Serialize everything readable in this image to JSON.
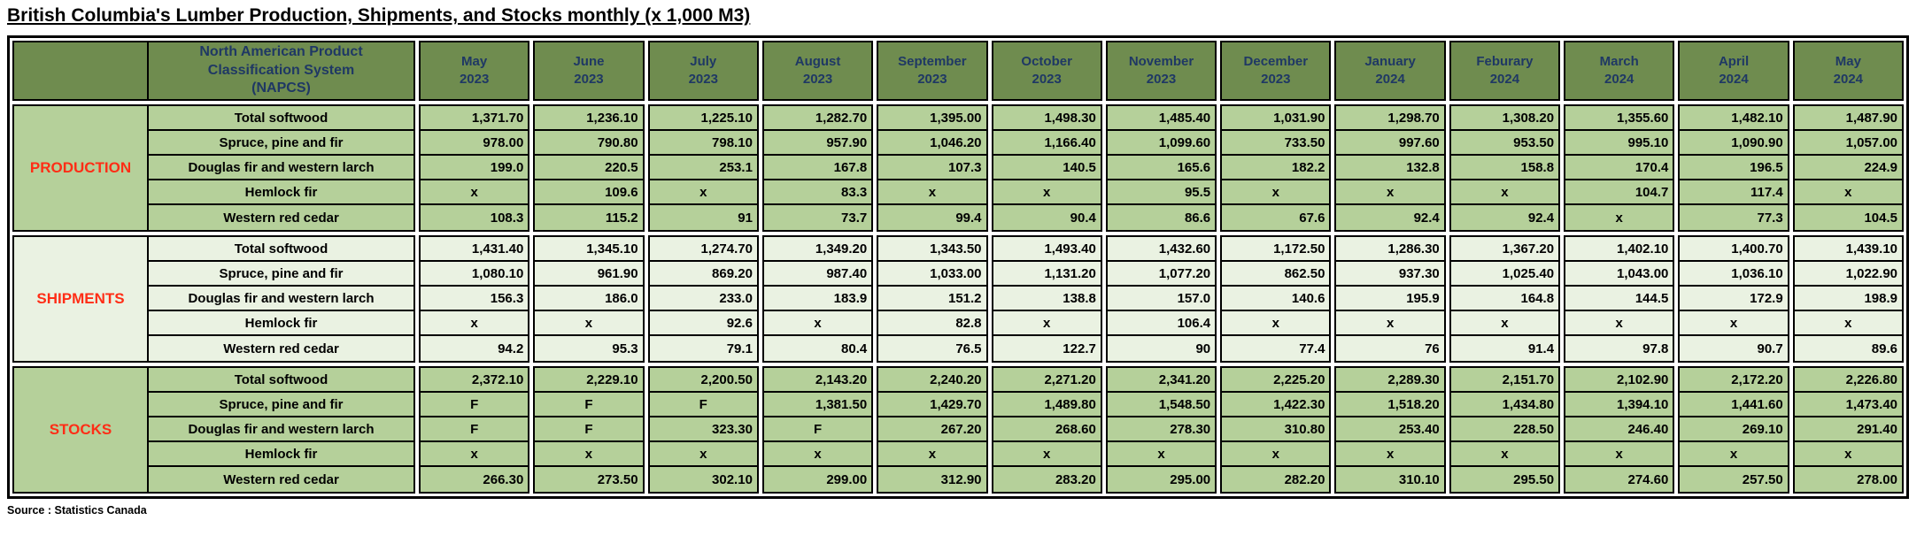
{
  "title": "British Columbia's Lumber Production, Shipments, and Stocks monthly (x 1,000 M3)",
  "source": "Source : Statistics Canada",
  "colors": {
    "header_green": "#6f8c4f",
    "cell_green": "#b5d09a",
    "cell_pale": "#eaf2e2",
    "heading_text": "#1f3864",
    "section_label": "#ff2d16",
    "border": "#000000"
  },
  "chart_data": {
    "type": "table",
    "title": "British Columbia's Lumber Production, Shipments, and Stocks monthly (x 1,000 M3)",
    "napcs_header": "North American Product Classification System (NAPCS)",
    "napcs_header_lines": [
      "North American Product",
      "Classification System",
      "(NAPCS)"
    ],
    "months": [
      {
        "label": "May",
        "year": "2023"
      },
      {
        "label": "June",
        "year": "2023"
      },
      {
        "label": "July",
        "year": "2023"
      },
      {
        "label": "August",
        "year": "2023"
      },
      {
        "label": "September",
        "year": "2023"
      },
      {
        "label": "October",
        "year": "2023"
      },
      {
        "label": "November",
        "year": "2023"
      },
      {
        "label": "December",
        "year": "2023"
      },
      {
        "label": "January",
        "year": "2024"
      },
      {
        "label": "Feburary",
        "year": "2024"
      },
      {
        "label": "March",
        "year": "2024"
      },
      {
        "label": "April",
        "year": "2024"
      },
      {
        "label": "May",
        "year": "2024"
      }
    ],
    "sections": [
      {
        "name": "PRODUCTION",
        "shade": "medium",
        "rows": [
          {
            "category": "Total softwood",
            "values": [
              "1,371.70",
              "1,236.10",
              "1,225.10",
              "1,282.70",
              "1,395.00",
              "1,498.30",
              "1,485.40",
              "1,031.90",
              "1,298.70",
              "1,308.20",
              "1,355.60",
              "1,482.10",
              "1,487.90"
            ]
          },
          {
            "category": "Spruce, pine and fir",
            "values": [
              "978.00",
              "790.80",
              "798.10",
              "957.90",
              "1,046.20",
              "1,166.40",
              "1,099.60",
              "733.50",
              "997.60",
              "953.50",
              "995.10",
              "1,090.90",
              "1,057.00"
            ]
          },
          {
            "category": "Douglas fir and western larch",
            "values": [
              "199.0",
              "220.5",
              "253.1",
              "167.8",
              "107.3",
              "140.5",
              "165.6",
              "182.2",
              "132.8",
              "158.8",
              "170.4",
              "196.5",
              "224.9"
            ]
          },
          {
            "category": "Hemlock fir",
            "values": [
              "x",
              "109.6",
              "x",
              "83.3",
              "x",
              "x",
              "95.5",
              "x",
              "x",
              "x",
              "104.7",
              "117.4",
              "x"
            ]
          },
          {
            "category": "Western red cedar",
            "values": [
              "108.3",
              "115.2",
              "91",
              "73.7",
              "99.4",
              "90.4",
              "86.6",
              "67.6",
              "92.4",
              "92.4",
              "x",
              "77.3",
              "104.5"
            ]
          }
        ]
      },
      {
        "name": "SHIPMENTS",
        "shade": "pale",
        "rows": [
          {
            "category": "Total softwood",
            "values": [
              "1,431.40",
              "1,345.10",
              "1,274.70",
              "1,349.20",
              "1,343.50",
              "1,493.40",
              "1,432.60",
              "1,172.50",
              "1,286.30",
              "1,367.20",
              "1,402.10",
              "1,400.70",
              "1,439.10"
            ]
          },
          {
            "category": "Spruce, pine and fir",
            "values": [
              "1,080.10",
              "961.90",
              "869.20",
              "987.40",
              "1,033.00",
              "1,131.20",
              "1,077.20",
              "862.50",
              "937.30",
              "1,025.40",
              "1,043.00",
              "1,036.10",
              "1,022.90"
            ]
          },
          {
            "category": "Douglas fir and western larch",
            "values": [
              "156.3",
              "186.0",
              "233.0",
              "183.9",
              "151.2",
              "138.8",
              "157.0",
              "140.6",
              "195.9",
              "164.8",
              "144.5",
              "172.9",
              "198.9"
            ]
          },
          {
            "category": "Hemlock fir",
            "values": [
              "x",
              "x",
              "92.6",
              "x",
              "82.8",
              "x",
              "106.4",
              "x",
              "x",
              "x",
              "x",
              "x",
              "x"
            ]
          },
          {
            "category": "Western red cedar",
            "values": [
              "94.2",
              "95.3",
              "79.1",
              "80.4",
              "76.5",
              "122.7",
              "90",
              "77.4",
              "76",
              "91.4",
              "97.8",
              "90.7",
              "89.6"
            ]
          }
        ]
      },
      {
        "name": "STOCKS",
        "shade": "medium",
        "rows": [
          {
            "category": "Total softwood",
            "values": [
              "2,372.10",
              "2,229.10",
              "2,200.50",
              "2,143.20",
              "2,240.20",
              "2,271.20",
              "2,341.20",
              "2,225.20",
              "2,289.30",
              "2,151.70",
              "2,102.90",
              "2,172.20",
              "2,226.80"
            ]
          },
          {
            "category": "Spruce, pine and fir",
            "values": [
              "F",
              "F",
              "F",
              "1,381.50",
              "1,429.70",
              "1,489.80",
              "1,548.50",
              "1,422.30",
              "1,518.20",
              "1,434.80",
              "1,394.10",
              "1,441.60",
              "1,473.40"
            ]
          },
          {
            "category": "Douglas fir and western larch",
            "values": [
              "F",
              "F",
              "323.30",
              "F",
              "267.20",
              "268.60",
              "278.30",
              "310.80",
              "253.40",
              "228.50",
              "246.40",
              "269.10",
              "291.40"
            ]
          },
          {
            "category": "Hemlock fir",
            "values": [
              "x",
              "x",
              "x",
              "x",
              "x",
              "x",
              "x",
              "x",
              "x",
              "x",
              "x",
              "x",
              "x"
            ]
          },
          {
            "category": "Western red cedar",
            "values": [
              "266.30",
              "273.50",
              "302.10",
              "299.00",
              "312.90",
              "283.20",
              "295.00",
              "282.20",
              "310.10",
              "295.50",
              "274.60",
              "257.50",
              "278.00"
            ]
          }
        ]
      }
    ]
  }
}
